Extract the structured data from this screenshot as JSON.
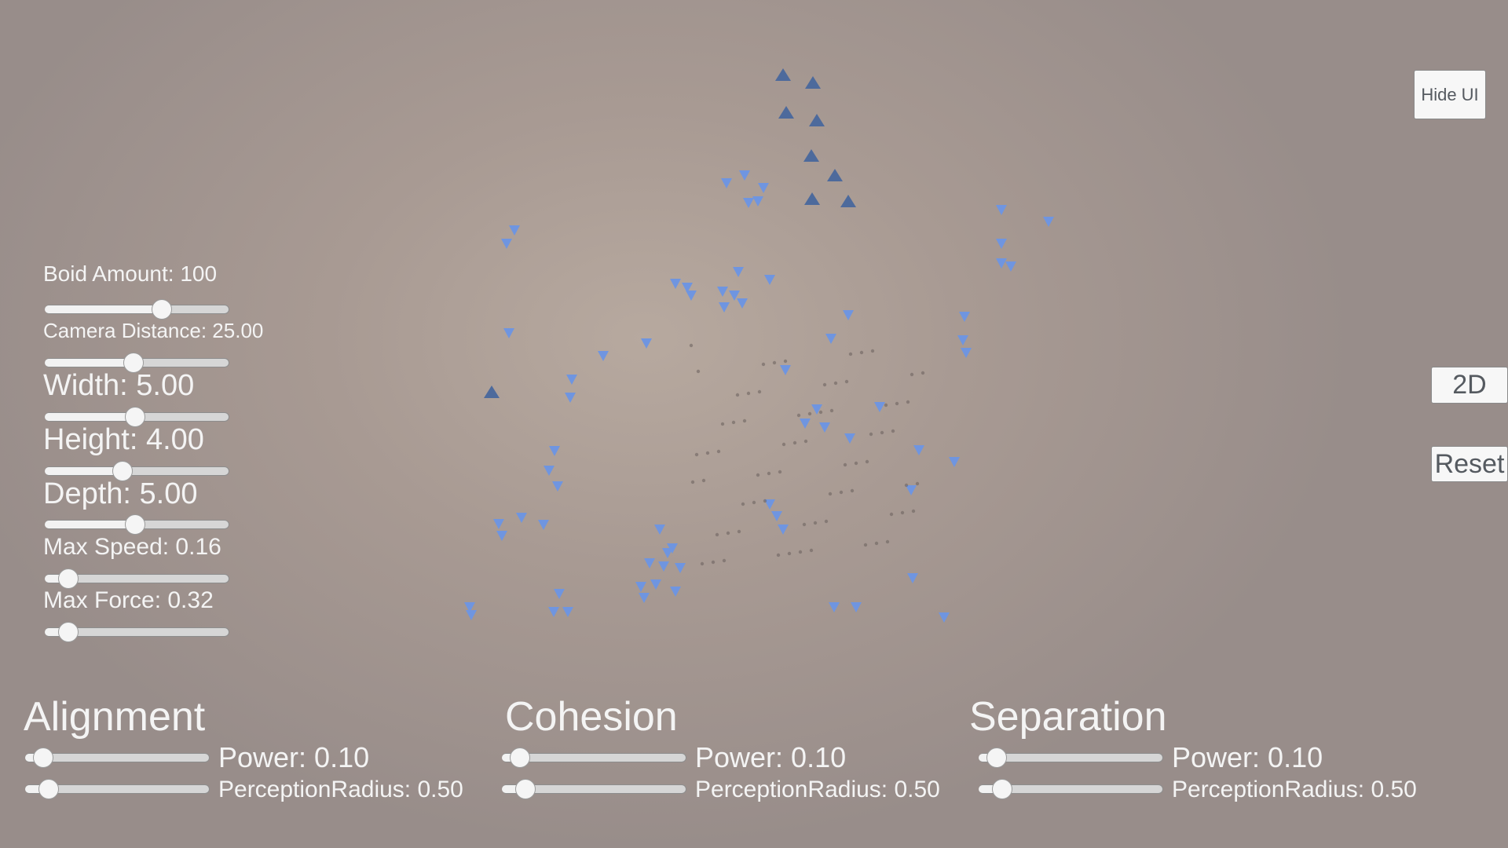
{
  "buttons": {
    "hide_ui": "Hide UI",
    "mode_2d": "2D",
    "reset": "Reset"
  },
  "settings": [
    {
      "label": "Boid Amount: 100",
      "value_fraction": 0.65
    },
    {
      "label": "Camera Distance: 25.00",
      "value_fraction": 0.48
    },
    {
      "label": "Width: 5.00",
      "value_fraction": 0.49
    },
    {
      "label": "Height: 4.00",
      "value_fraction": 0.41
    },
    {
      "label": "Depth: 5.00",
      "value_fraction": 0.49
    },
    {
      "label": "Max Speed: 0.16",
      "value_fraction": 0.08
    },
    {
      "label": "Max Force: 0.32",
      "value_fraction": 0.08
    }
  ],
  "behaviors": [
    {
      "title": "Alignment",
      "power_label": "Power: 0.10",
      "power_fraction": 0.05,
      "radius_label": "PerceptionRadius: 0.50",
      "radius_fraction": 0.08
    },
    {
      "title": "Cohesion",
      "power_label": "Power: 0.10",
      "power_fraction": 0.05,
      "radius_label": "PerceptionRadius: 0.50",
      "radius_fraction": 0.08
    },
    {
      "title": "Separation",
      "power_label": "Power: 0.10",
      "power_fraction": 0.05,
      "radius_label": "PerceptionRadius: 0.50",
      "radius_fraction": 0.08
    }
  ],
  "colors": {
    "boid": "#6f95e0",
    "boid_dark": "#4d6a9c",
    "shadow": "#6e6460"
  }
}
